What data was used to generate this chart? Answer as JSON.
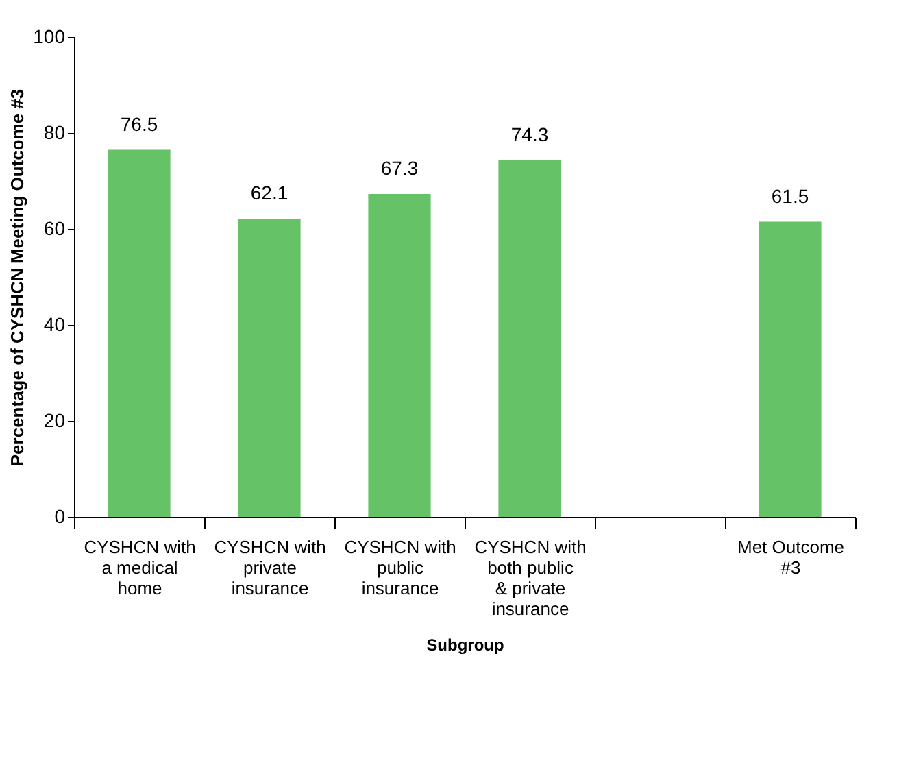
{
  "chart_data": {
    "type": "bar",
    "categories": [
      "CYSHCN with a medical home",
      "CYSHCN with private insurance",
      "CYSHCN with public insurance",
      "CYSHCN with both public & private insurance",
      null,
      "Met Outcome #3"
    ],
    "values": [
      76.5,
      62.1,
      67.3,
      74.3,
      null,
      61.5
    ],
    "color": "#66c266",
    "xlabel": "Subgroup",
    "ylabel": "Percentage of CYSHCN Meeting Outcome #3",
    "ylim": [
      0,
      100
    ],
    "yticks": [
      0,
      20,
      40,
      60,
      80,
      100
    ],
    "data_labels": true,
    "grid": false
  }
}
